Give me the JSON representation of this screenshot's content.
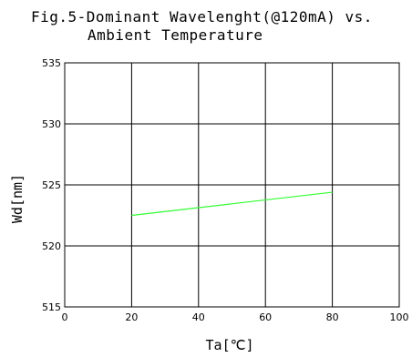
{
  "chart_data": {
    "type": "line",
    "title_line1": "Fig.5-Dominant Wavelenght(@120mA) vs.",
    "title_line2": "Ambient Temperature",
    "xlabel": "Ta[℃]",
    "ylabel": "Wd[nm]",
    "xlim": [
      0,
      100
    ],
    "ylim": [
      515,
      535
    ],
    "x_ticks": [
      0,
      20,
      40,
      60,
      80,
      100
    ],
    "y_ticks": [
      515,
      520,
      525,
      530,
      535
    ],
    "grid": true,
    "series": [
      {
        "x": [
          20,
          80
        ],
        "y": [
          522.5,
          524.4
        ],
        "color": "#33ff33"
      }
    ]
  }
}
